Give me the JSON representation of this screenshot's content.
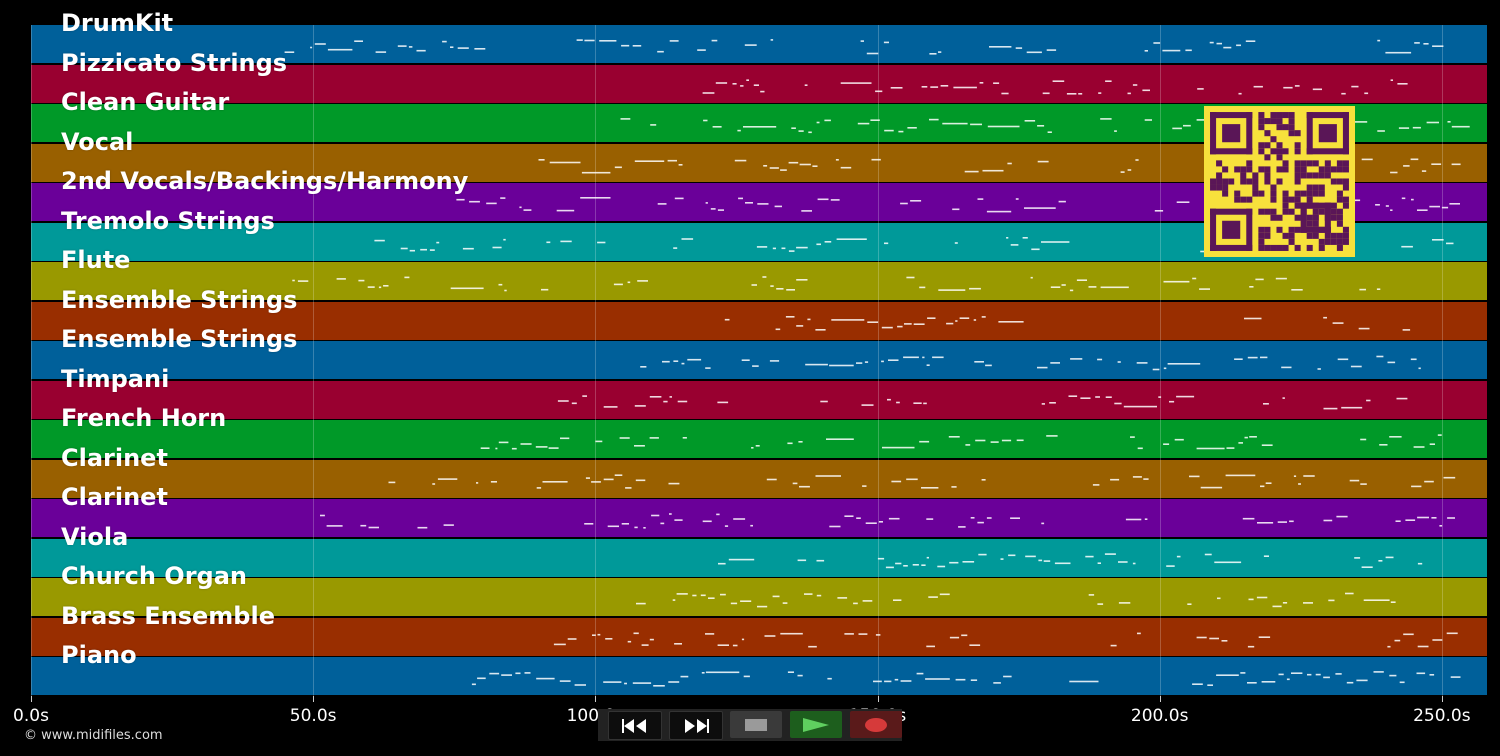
{
  "tracks": [
    {
      "name": "DrumKit",
      "color": "#00609a"
    },
    {
      "name": "Pizzicato Strings",
      "color": "#990030"
    },
    {
      "name": "Clean Guitar",
      "color": "#009928"
    },
    {
      "name": "Vocal",
      "color": "#996000"
    },
    {
      "name": "2nd Vocals/Backings/Harmony",
      "color": "#6a0099"
    },
    {
      "name": "Tremolo Strings",
      "color": "#009999"
    },
    {
      "name": "Flute",
      "color": "#999900"
    },
    {
      "name": "Ensemble Strings",
      "color": "#992e00"
    },
    {
      "name": "Ensemble Strings",
      "color": "#00609a"
    },
    {
      "name": "Timpani",
      "color": "#990030"
    },
    {
      "name": "French Horn",
      "color": "#009928"
    },
    {
      "name": "Clarinet",
      "color": "#996000"
    },
    {
      "name": "Clarinet",
      "color": "#6a0099"
    },
    {
      "name": "Viola",
      "color": "#009999"
    },
    {
      "name": "Church Organ",
      "color": "#999900"
    },
    {
      "name": "Brass Ensemble",
      "color": "#992e00"
    },
    {
      "name": "Piano",
      "color": "#00609a"
    }
  ],
  "time_axis": {
    "max_seconds": 258.0,
    "ticks": [
      {
        "value": 0,
        "label": "0.0s"
      },
      {
        "value": 50,
        "label": "50.0s"
      },
      {
        "value": 100,
        "label": "100.0s"
      },
      {
        "value": 150,
        "label": "150.0s"
      },
      {
        "value": 200,
        "label": "200.0s"
      },
      {
        "value": 250,
        "label": "250.0s"
      }
    ]
  },
  "copyright": "© www.midifiles.com",
  "transport": {
    "rewind": "rewind-icon",
    "fast_forward": "fast-forward-icon",
    "stop": "stop-icon",
    "play": "play-icon",
    "record": "record-icon",
    "colors": {
      "play": "#5fcf5f",
      "record": "#d63a3a",
      "stop": "#9a9a9a"
    }
  },
  "qr_code": {
    "color": "#f7e13c",
    "module_color": "#5a1657"
  }
}
